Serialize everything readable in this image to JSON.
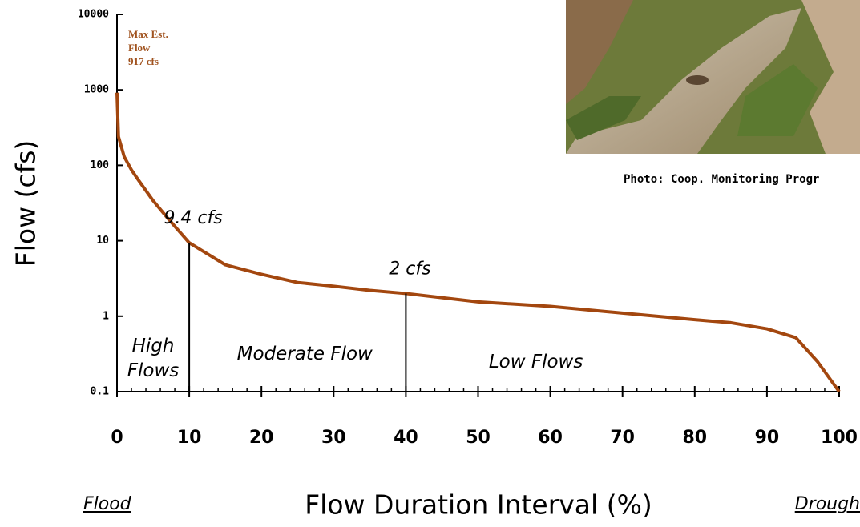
{
  "chart_data": {
    "type": "line",
    "xlabel": "Flow Duration Interval (%)",
    "ylabel": "Flow (cfs)",
    "caption": "Photo: Coop. Monitoring Progr",
    "end_labels": [
      "Flood",
      "Drough"
    ],
    "x": [
      0,
      0.2,
      1,
      2,
      3,
      5,
      7,
      10,
      15,
      20,
      25,
      30,
      35,
      40,
      50,
      60,
      70,
      80,
      85,
      90,
      94,
      97,
      100
    ],
    "values": [
      917,
      240,
      130,
      87,
      63,
      34,
      20,
      9.4,
      4.8,
      3.6,
      2.8,
      2.5,
      2.2,
      2,
      1.55,
      1.35,
      1.1,
      0.9,
      0.82,
      0.68,
      0.52,
      0.25,
      0.1
    ],
    "color": "#a3470f",
    "xlim": [
      0,
      100
    ],
    "xticks": [
      0,
      10,
      20,
      30,
      40,
      50,
      60,
      70,
      80,
      90,
      100
    ],
    "ylim": [
      0.1,
      10000
    ],
    "yticks": [
      0.1,
      1,
      10,
      100,
      1000,
      10000
    ],
    "ylog": true,
    "max_note": {
      "lines": [
        "Max Est.",
        "Flow",
        "917 cfs"
      ]
    },
    "annotations": [
      {
        "text": "9.4 cfs",
        "x": 10,
        "y": 9.4
      },
      {
        "text": "2 cfs",
        "x": 40,
        "y": 2
      }
    ],
    "regions": [
      {
        "lines": [
          "High",
          "Flows"
        ],
        "x": 5
      },
      {
        "lines": [
          "Moderate Flow"
        ],
        "x": 26
      },
      {
        "lines": [
          "Low Flows"
        ],
        "x": 58
      }
    ]
  }
}
